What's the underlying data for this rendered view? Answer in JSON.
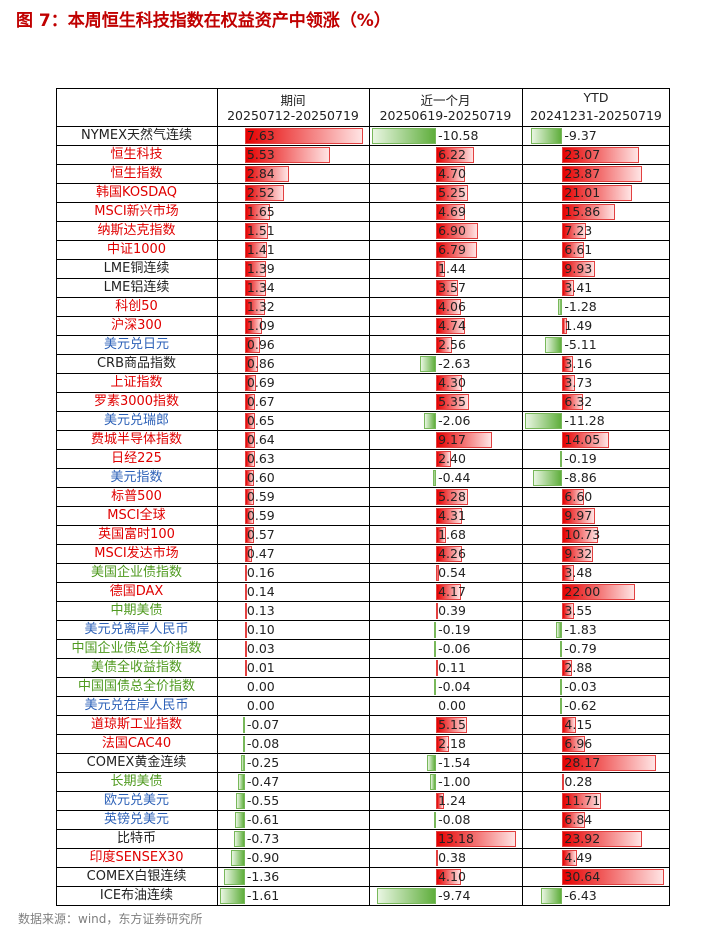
{
  "title": "图 7：本周恒生科技指数在权益资产中领涨（%）",
  "source": "数据来源：wind，东方证券研究所",
  "columns": [
    {
      "label": "期间",
      "range": "20250712-20250719"
    },
    {
      "label": "近一个月",
      "range": "20250619-20250719"
    },
    {
      "label": "YTD",
      "range": "20241231-20250719"
    }
  ],
  "colors": {
    "positive": "#e60000",
    "negative": "#5fae3c",
    "red_text": "#e00000",
    "blue_text": "#2e62b8",
    "green_text": "#4f9a1f"
  },
  "rows": [
    {
      "name": "NYMEX天然气连续",
      "color": "dark",
      "week": "7.63",
      "month": "-10.58",
      "ytd": "-9.37"
    },
    {
      "name": "恒生科技",
      "color": "red",
      "week": "5.53",
      "month": "6.22",
      "ytd": "23.07"
    },
    {
      "name": "恒生指数",
      "color": "red",
      "week": "2.84",
      "month": "4.70",
      "ytd": "23.87"
    },
    {
      "name": "韩国KOSDAQ",
      "color": "red",
      "week": "2.52",
      "month": "5.25",
      "ytd": "21.01"
    },
    {
      "name": "MSCI新兴市场",
      "color": "red",
      "week": "1.65",
      "month": "4.69",
      "ytd": "15.86"
    },
    {
      "name": "纳斯达克指数",
      "color": "red",
      "week": "1.51",
      "month": "6.90",
      "ytd": "7.23"
    },
    {
      "name": "中证1000",
      "color": "red",
      "week": "1.41",
      "month": "6.79",
      "ytd": "6.61"
    },
    {
      "name": "LME铜连续",
      "color": "dark",
      "week": "1.39",
      "month": "1.44",
      "ytd": "9.93"
    },
    {
      "name": "LME铝连续",
      "color": "dark",
      "week": "1.34",
      "month": "3.57",
      "ytd": "3.41"
    },
    {
      "name": "科创50",
      "color": "red",
      "week": "1.32",
      "month": "4.06",
      "ytd": "-1.28"
    },
    {
      "name": "沪深300",
      "color": "red",
      "week": "1.09",
      "month": "4.74",
      "ytd": "1.49"
    },
    {
      "name": "美元兑日元",
      "color": "blue",
      "week": "0.96",
      "month": "2.56",
      "ytd": "-5.11"
    },
    {
      "name": "CRB商品指数",
      "color": "dark",
      "week": "0.86",
      "month": "-2.63",
      "ytd": "3.16"
    },
    {
      "name": "上证指数",
      "color": "red",
      "week": "0.69",
      "month": "4.30",
      "ytd": "3.73"
    },
    {
      "name": "罗素3000指数",
      "color": "red",
      "week": "0.67",
      "month": "5.35",
      "ytd": "6.32"
    },
    {
      "name": "美元兑瑞郎",
      "color": "blue",
      "week": "0.65",
      "month": "-2.06",
      "ytd": "-11.28"
    },
    {
      "name": "费城半导体指数",
      "color": "red",
      "week": "0.64",
      "month": "9.17",
      "ytd": "14.05"
    },
    {
      "name": "日经225",
      "color": "red",
      "week": "0.63",
      "month": "2.40",
      "ytd": "-0.19"
    },
    {
      "name": "美元指数",
      "color": "blue",
      "week": "0.60",
      "month": "-0.44",
      "ytd": "-8.86"
    },
    {
      "name": "标普500",
      "color": "red",
      "week": "0.59",
      "month": "5.28",
      "ytd": "6.60"
    },
    {
      "name": "MSCI全球",
      "color": "red",
      "week": "0.59",
      "month": "4.31",
      "ytd": "9.97"
    },
    {
      "name": "英国富时100",
      "color": "red",
      "week": "0.57",
      "month": "1.68",
      "ytd": "10.73"
    },
    {
      "name": "MSCI发达市场",
      "color": "red",
      "week": "0.47",
      "month": "4.26",
      "ytd": "9.32"
    },
    {
      "name": "美国企业债指数",
      "color": "green",
      "week": "0.16",
      "month": "0.54",
      "ytd": "3.48"
    },
    {
      "name": "德国DAX",
      "color": "red",
      "week": "0.14",
      "month": "4.17",
      "ytd": "22.00"
    },
    {
      "name": "中期美债",
      "color": "green",
      "week": "0.13",
      "month": "0.39",
      "ytd": "3.55"
    },
    {
      "name": "美元兑离岸人民币",
      "color": "blue",
      "week": "0.10",
      "month": "-0.19",
      "ytd": "-1.83"
    },
    {
      "name": "中国企业债总全价指数",
      "color": "green",
      "week": "0.03",
      "month": "-0.06",
      "ytd": "-0.79"
    },
    {
      "name": "美债全收益指数",
      "color": "green",
      "week": "0.01",
      "month": "0.11",
      "ytd": "2.88"
    },
    {
      "name": "中国国债总全价指数",
      "color": "green",
      "week": "0.00",
      "month": "-0.04",
      "ytd": "-0.03"
    },
    {
      "name": "美元兑在岸人民币",
      "color": "blue",
      "week": "0.00",
      "month": "0.00",
      "ytd": "-0.62"
    },
    {
      "name": "道琼斯工业指数",
      "color": "red",
      "week": "-0.07",
      "month": "5.15",
      "ytd": "4.15"
    },
    {
      "name": "法国CAC40",
      "color": "red",
      "week": "-0.08",
      "month": "2.18",
      "ytd": "6.96"
    },
    {
      "name": "COMEX黄金连续",
      "color": "dark",
      "week": "-0.25",
      "month": "-1.54",
      "ytd": "28.17"
    },
    {
      "name": "长期美债",
      "color": "green",
      "week": "-0.47",
      "month": "-1.00",
      "ytd": "0.28"
    },
    {
      "name": "欧元兑美元",
      "color": "blue",
      "week": "-0.55",
      "month": "1.24",
      "ytd": "11.71"
    },
    {
      "name": "英镑兑美元",
      "color": "blue",
      "week": "-0.61",
      "month": "-0.08",
      "ytd": "6.84"
    },
    {
      "name": "比特币",
      "color": "dark",
      "week": "-0.73",
      "month": "13.18",
      "ytd": "23.92"
    },
    {
      "name": "印度SENSEX30",
      "color": "red",
      "week": "-0.90",
      "month": "0.38",
      "ytd": "4.49"
    },
    {
      "name": "COMEX白银连续",
      "color": "dark",
      "week": "-1.36",
      "month": "4.10",
      "ytd": "30.64"
    },
    {
      "name": "ICE布油连续",
      "color": "dark",
      "week": "-1.61",
      "month": "-9.74",
      "ytd": "-6.43"
    }
  ]
}
